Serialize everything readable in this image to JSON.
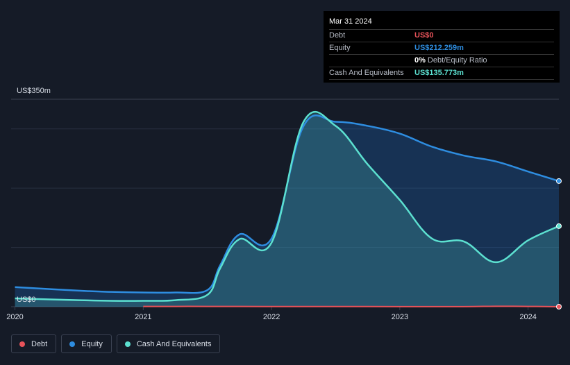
{
  "chart_data": {
    "type": "area",
    "x_unit": "year",
    "y_unit": "US$m",
    "ylim": [
      0,
      350
    ],
    "xlim": [
      2019.97,
      2024.24
    ],
    "y_tick_labels": [
      {
        "value": 350,
        "label": "US$350m"
      },
      {
        "value": 0,
        "label": "US$0"
      }
    ],
    "x_tick_labels": [
      {
        "value": 2020,
        "label": "2020"
      },
      {
        "value": 2021,
        "label": "2021"
      },
      {
        "value": 2022,
        "label": "2022"
      },
      {
        "value": 2023,
        "label": "2023"
      },
      {
        "value": 2024,
        "label": "2024"
      }
    ],
    "series": [
      {
        "name": "Cash And Equivalents",
        "color": "#5ce0d0",
        "x": [
          2020.0,
          2020.5,
          2020.75,
          2021.0,
          2021.25,
          2021.5,
          2021.6,
          2021.75,
          2022.0,
          2022.25,
          2022.5,
          2022.75,
          2023.0,
          2023.25,
          2023.5,
          2023.75,
          2024.0,
          2024.24
        ],
        "values": [
          14,
          11,
          10,
          10,
          11,
          20,
          65,
          114,
          108,
          312,
          305,
          240,
          180,
          115,
          110,
          75,
          112,
          136
        ]
      },
      {
        "name": "Equity",
        "color": "#2e8de0",
        "x": [
          2020.0,
          2020.5,
          2020.75,
          2021.0,
          2021.25,
          2021.5,
          2021.6,
          2021.75,
          2022.0,
          2022.25,
          2022.5,
          2022.75,
          2023.0,
          2023.25,
          2023.5,
          2023.75,
          2024.0,
          2024.24
        ],
        "values": [
          33,
          27,
          25,
          24,
          24,
          28,
          70,
          122,
          115,
          305,
          312,
          305,
          292,
          270,
          255,
          245,
          228,
          212
        ]
      },
      {
        "name": "Debt",
        "color": "#e8535a",
        "x": [
          2021.0,
          2021.5,
          2022.0,
          2022.5,
          2023.0,
          2023.5,
          2023.75,
          2024.0,
          2024.24
        ],
        "values": [
          0.5,
          0.5,
          0.3,
          0.3,
          0.2,
          0.2,
          0.8,
          0.5,
          0
        ]
      }
    ]
  },
  "tooltip": {
    "date": "Mar 31 2024",
    "rows": [
      {
        "label": "Debt",
        "value": "US$0",
        "color": "#e8535a"
      },
      {
        "label": "Equity",
        "value": "US$212.259m",
        "color": "#2e8de0"
      },
      {
        "label": "",
        "value": "0%",
        "suffix": "Debt/Equity Ratio",
        "color": "#ffffff"
      },
      {
        "label": "Cash And Equivalents",
        "value": "US$135.773m",
        "color": "#5ce0d0"
      }
    ]
  },
  "legend": [
    {
      "label": "Debt",
      "color": "#e8535a"
    },
    {
      "label": "Equity",
      "color": "#2e8de0"
    },
    {
      "label": "Cash And Equivalents",
      "color": "#5ce0d0"
    }
  ]
}
